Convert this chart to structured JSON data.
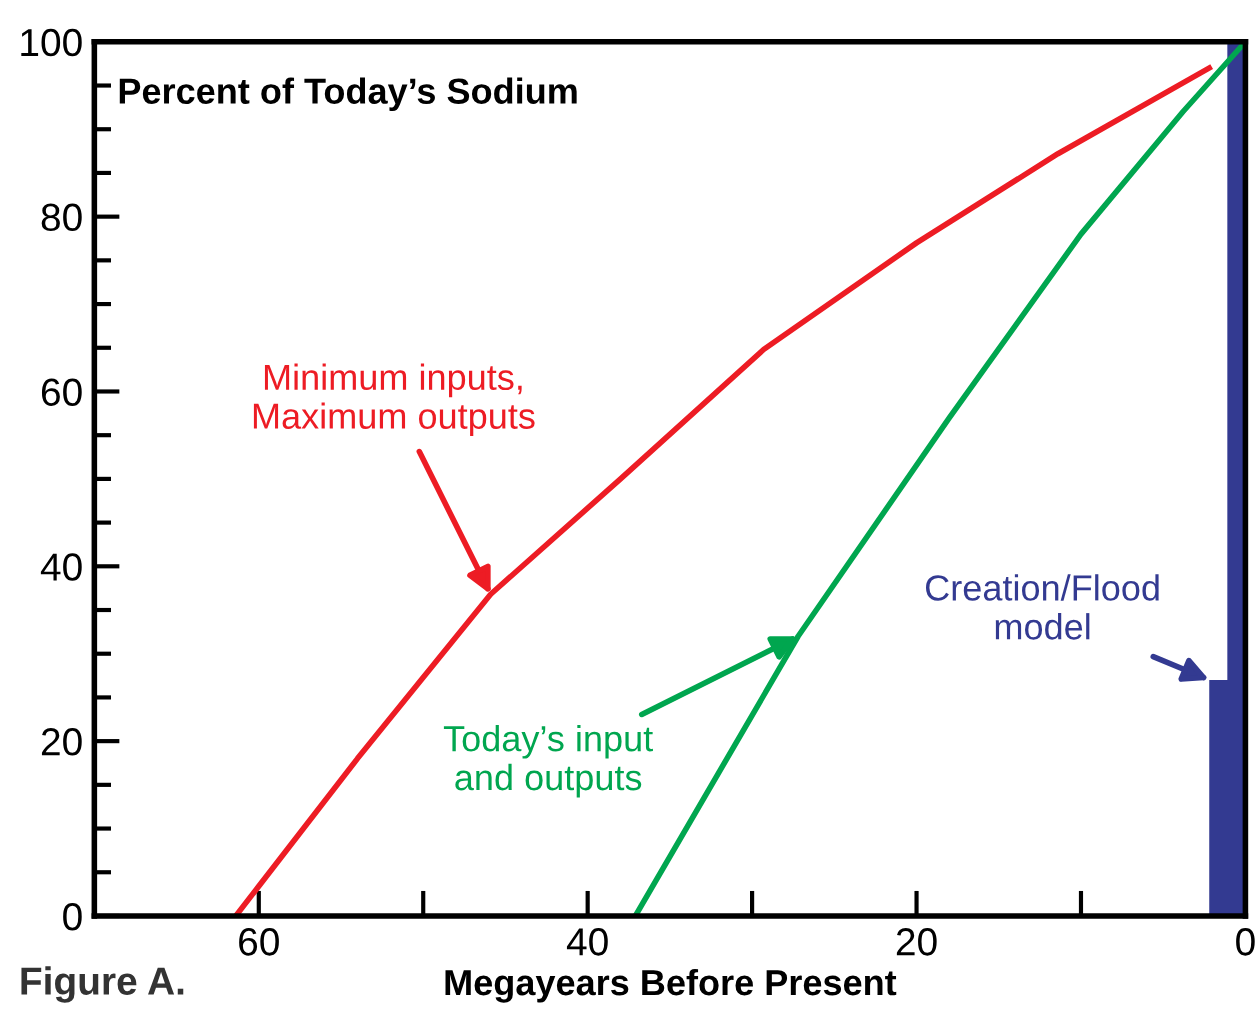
{
  "chart_data": {
    "type": "line",
    "xlabel": "Megayears Before Present",
    "xlim": [
      70,
      0
    ],
    "ylim": [
      0,
      100
    ],
    "xticks": [
      60,
      {
        "value": 50,
        "label": null
      },
      40,
      {
        "value": 30,
        "label": null
      },
      20,
      {
        "value": 10,
        "label": null
      },
      0
    ],
    "yticks": [
      0,
      20,
      40,
      60,
      80,
      100
    ],
    "grid": false,
    "legend": false,
    "marker": "none",
    "line_style": "solid",
    "series": [
      {
        "color": "#ed1c24",
        "x": [
          61.4,
          54,
          45.9,
          38,
          29.3,
          20,
          11.4,
          2.2
        ],
        "values": [
          0,
          18,
          36.8,
          50,
          64.8,
          77,
          87.2,
          97
        ]
      },
      {
        "color": "#00a64f",
        "x": [
          37.1,
          27.2,
          18,
          10,
          3.8,
          0
        ],
        "values": [
          0,
          32,
          57,
          78,
          92,
          100
        ]
      },
      {
        "type": "area",
        "color": "#333a91",
        "x": [
          2.2,
          1.1,
          1.1,
          0
        ],
        "values": [
          27,
          27,
          100,
          100
        ]
      }
    ],
    "annotations": [
      {
        "text": "Minimum inputs,\nMaximum outputs",
        "x": 45.9,
        "y": 36.8
      },
      {
        "text": "Today’s input\nand outputs",
        "x": 27.2,
        "y": 32
      },
      {
        "text": "Creation/Flood\nmodel",
        "x": 2.2,
        "y": 27
      },
      "Percent of Today’s Sodium",
      "Figure A."
    ]
  }
}
